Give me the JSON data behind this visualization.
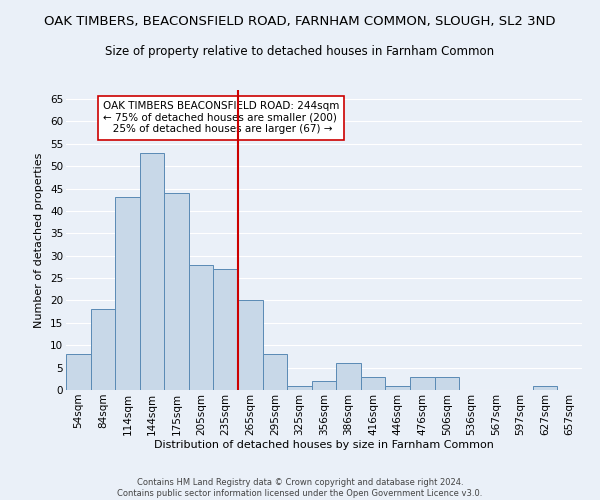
{
  "title": "OAK TIMBERS, BEACONSFIELD ROAD, FARNHAM COMMON, SLOUGH, SL2 3ND",
  "subtitle": "Size of property relative to detached houses in Farnham Common",
  "xlabel": "Distribution of detached houses by size in Farnham Common",
  "ylabel": "Number of detached properties",
  "footer_line1": "Contains HM Land Registry data © Crown copyright and database right 2024.",
  "footer_line2": "Contains public sector information licensed under the Open Government Licence v3.0.",
  "categories": [
    "54sqm",
    "84sqm",
    "114sqm",
    "144sqm",
    "175sqm",
    "205sqm",
    "235sqm",
    "265sqm",
    "295sqm",
    "325sqm",
    "356sqm",
    "386sqm",
    "416sqm",
    "446sqm",
    "476sqm",
    "506sqm",
    "536sqm",
    "567sqm",
    "597sqm",
    "627sqm",
    "657sqm"
  ],
  "values": [
    8,
    18,
    43,
    53,
    44,
    28,
    27,
    20,
    8,
    1,
    2,
    6,
    3,
    1,
    3,
    3,
    0,
    0,
    0,
    1,
    0
  ],
  "bar_color": "#c8d8e8",
  "bar_edge_color": "#5a8ab5",
  "vline_x": 6.5,
  "vline_color": "#cc0000",
  "annotation_line1": "OAK TIMBERS BEACONSFIELD ROAD: 244sqm",
  "annotation_line2": "← 75% of detached houses are smaller (200)",
  "annotation_line3": "   25% of detached houses are larger (67) →",
  "annotation_box_color": "#ffffff",
  "annotation_box_edge": "#cc0000",
  "ylim": [
    0,
    67
  ],
  "yticks": [
    0,
    5,
    10,
    15,
    20,
    25,
    30,
    35,
    40,
    45,
    50,
    55,
    60,
    65
  ],
  "bg_color": "#eaf0f8",
  "grid_color": "#ffffff",
  "title_fontsize": 9.5,
  "subtitle_fontsize": 8.5,
  "axis_label_fontsize": 8,
  "tick_fontsize": 7.5
}
